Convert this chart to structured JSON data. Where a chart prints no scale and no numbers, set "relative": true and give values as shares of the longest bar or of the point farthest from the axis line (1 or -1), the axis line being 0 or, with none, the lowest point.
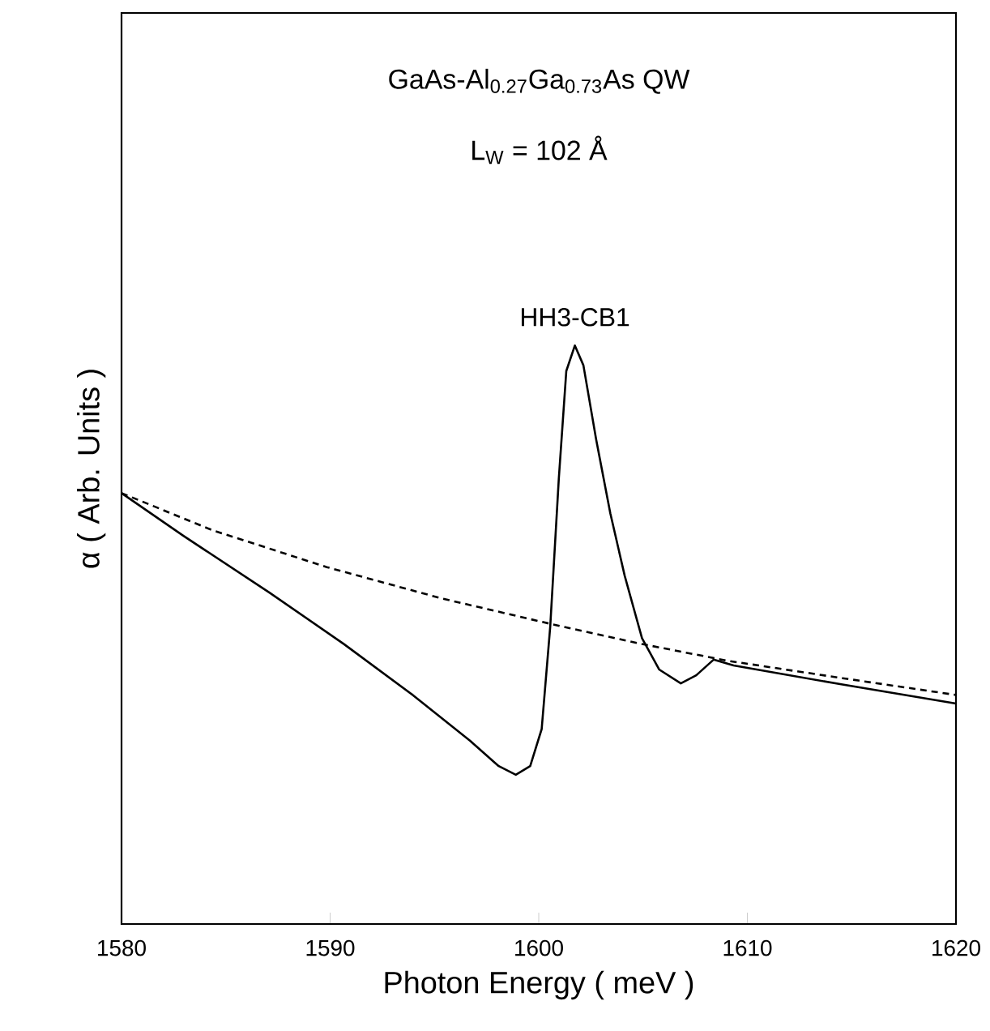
{
  "chart_data": {
    "type": "line",
    "title": "GaAs-Al$_{0.27}$Ga$_{0.73}$As QW",
    "subtitle": "L$_{W}$ = 102 Å",
    "xlabel": "Photon Energy ( meV )",
    "ylabel": "α ( Arb. Units )",
    "relative": true,
    "annotations": [
      {
        "text": "HH3-CB1",
        "x": 1601.73,
        "y": 1.0
      }
    ],
    "xlim": [
      1580,
      1620
    ],
    "xticks": [
      1580,
      1590,
      1600,
      1610,
      1620
    ],
    "series": [
      {
        "color": "#000000",
        "line_style": "solid",
        "x": [
          1580,
          1582.97,
          1587.09,
          1590.66,
          1593.96,
          1596.7,
          1598.08,
          1598.9,
          1599.59,
          1600.14,
          1600.55,
          1600.96,
          1601.32,
          1601.73,
          1602.14,
          1602.75,
          1603.43,
          1604.12,
          1604.95,
          1605.77,
          1606.81,
          1607.55,
          1608.38,
          1609.34,
          1614.56,
          1620
        ],
        "values": [
          0.745,
          0.671,
          0.573,
          0.484,
          0.396,
          0.317,
          0.273,
          0.258,
          0.273,
          0.337,
          0.514,
          0.769,
          0.956,
          1.0,
          0.966,
          0.838,
          0.71,
          0.602,
          0.494,
          0.44,
          0.416,
          0.43,
          0.457,
          0.447,
          0.414,
          0.381
        ]
      },
      {
        "color": "#000000",
        "line_style": "dashed",
        "x": [
          1580,
          1584.34,
          1589.84,
          1595.33,
          1600.55,
          1604.95,
          1609.07,
          1614.56,
          1620
        ],
        "values": [
          0.745,
          0.681,
          0.617,
          0.563,
          0.519,
          0.484,
          0.455,
          0.425,
          0.396
        ]
      }
    ]
  }
}
